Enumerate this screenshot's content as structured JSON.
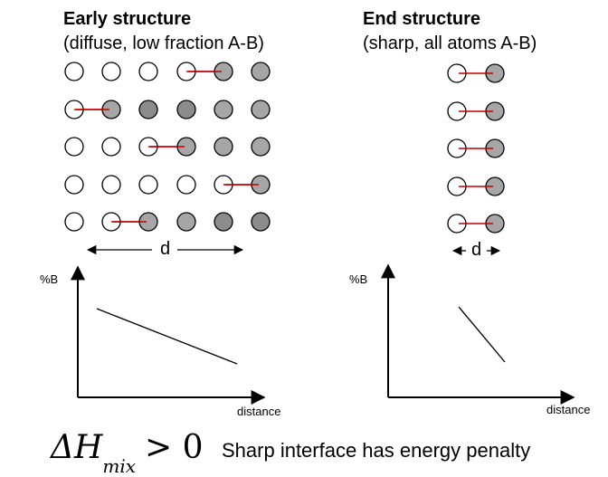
{
  "left_panel": {
    "title": "Early structure",
    "subtitle": "(diffuse, low fraction A-B)",
    "distance_label": "d",
    "graph": {
      "y_label": "%B",
      "x_label": "distance"
    },
    "grid": [
      [
        "A",
        "A",
        "A",
        "A",
        "B",
        "B"
      ],
      [
        "A",
        "B",
        "Bd",
        "Bd",
        "B",
        "B"
      ],
      [
        "A",
        "A",
        "A",
        "B",
        "B",
        "B"
      ],
      [
        "A",
        "A",
        "A",
        "A",
        "A",
        "B"
      ],
      [
        "A",
        "A",
        "B",
        "B",
        "Bd",
        "Bd"
      ]
    ],
    "bonds": [
      [
        0,
        3
      ],
      [
        1,
        0
      ],
      [
        2,
        2
      ],
      [
        3,
        4
      ],
      [
        4,
        1
      ]
    ]
  },
  "right_panel": {
    "title": "End structure",
    "subtitle": "(sharp, all atoms A-B)",
    "distance_label": "d",
    "graph": {
      "y_label": "%B",
      "x_label": "distance"
    },
    "pair_rows": 5
  },
  "footer": {
    "eq_main": "ΔH",
    "eq_sub": "mix",
    "eq_rel": "> 0",
    "caption": "Sharp interface has energy penalty"
  },
  "colors": {
    "atom_A": "#ffffff",
    "atom_B": "#a6a6a6",
    "atom_B_dark": "#8c8c8c",
    "bond": "#c00000",
    "outline": "#000000"
  }
}
